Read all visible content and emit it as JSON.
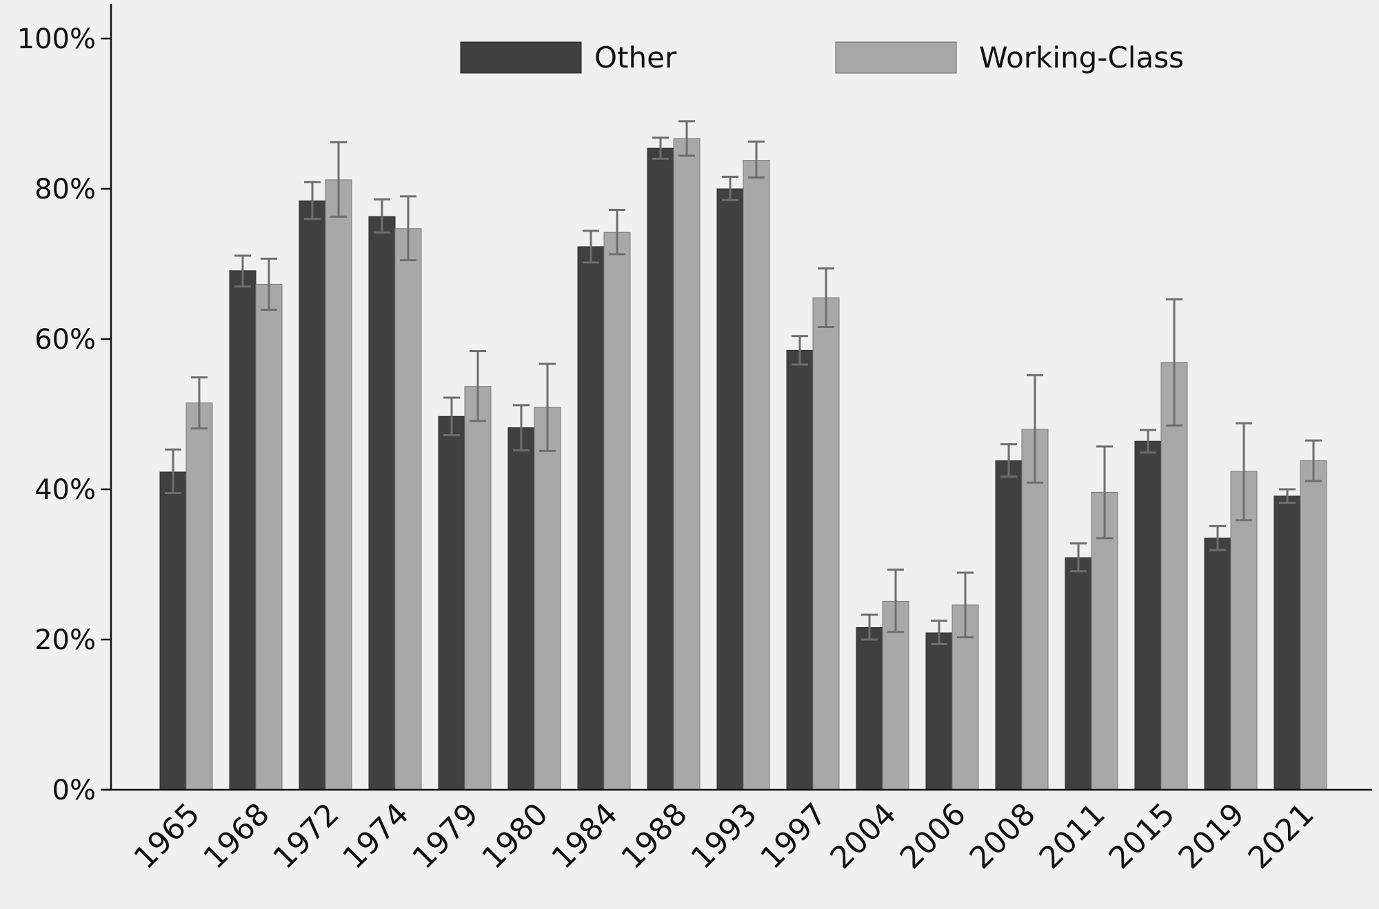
{
  "chart_data": {
    "type": "bar",
    "categories": [
      "1965",
      "1968",
      "1972",
      "1974",
      "1979",
      "1980",
      "1984",
      "1988",
      "1993",
      "1997",
      "2004",
      "2006",
      "2008",
      "2011",
      "2015",
      "2019",
      "2021"
    ],
    "series": [
      {
        "name": "Other",
        "color": "#404040",
        "values": [
          42.3,
          69.1,
          78.4,
          76.3,
          49.7,
          48.2,
          72.3,
          85.4,
          80.0,
          58.5,
          21.6,
          20.9,
          43.8,
          30.9,
          46.4,
          33.5,
          39.1
        ],
        "err_low": [
          39.5,
          67.0,
          76.0,
          74.2,
          47.2,
          45.2,
          70.2,
          84.0,
          78.5,
          56.6,
          20.0,
          19.4,
          41.7,
          29.1,
          44.9,
          31.9,
          38.2
        ],
        "err_high": [
          45.3,
          71.1,
          80.9,
          78.6,
          52.2,
          51.2,
          74.4,
          86.8,
          81.6,
          60.4,
          23.3,
          22.5,
          46.0,
          32.8,
          47.9,
          35.1,
          40.0
        ]
      },
      {
        "name": "Working-Class",
        "color": "#a8a8a8",
        "values": [
          51.5,
          67.3,
          81.2,
          74.7,
          53.7,
          50.9,
          74.2,
          86.7,
          83.8,
          65.5,
          25.1,
          24.6,
          48.0,
          39.6,
          56.9,
          42.4,
          43.8
        ],
        "err_low": [
          48.1,
          63.9,
          76.3,
          70.5,
          49.1,
          45.1,
          71.3,
          84.4,
          81.5,
          61.6,
          21.0,
          20.3,
          40.9,
          33.5,
          48.5,
          35.9,
          41.1
        ],
        "err_high": [
          54.9,
          70.7,
          86.2,
          79.0,
          58.4,
          56.7,
          77.2,
          89.0,
          86.3,
          69.4,
          29.3,
          28.9,
          55.2,
          45.7,
          65.3,
          48.8,
          46.5
        ]
      }
    ],
    "yticks": [
      "0%",
      "20%",
      "40%",
      "60%",
      "80%",
      "100%"
    ],
    "ylim": [
      0,
      100
    ],
    "legend_position": "top-center",
    "grid": false
  }
}
